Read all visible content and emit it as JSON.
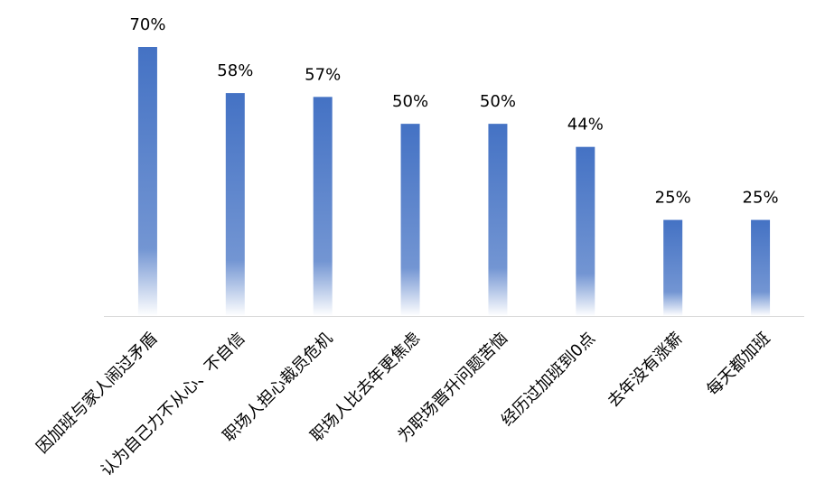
{
  "chart_data": {
    "type": "bar",
    "categories": [
      "因加班与家人闹过矛盾",
      "认为自己力不从心、不自信",
      "职场人担心裁员危机",
      "职场人比去年更焦虑",
      "为职场晋升问题苦恼",
      "经历过加班到0点",
      "去年没有涨薪",
      "每天都加班"
    ],
    "values": [
      70,
      58,
      57,
      50,
      50,
      44,
      25,
      25
    ],
    "value_labels": [
      "70%",
      "58%",
      "57%",
      "50%",
      "50%",
      "44%",
      "25%",
      "25%"
    ],
    "color": "#4472c4",
    "ylim": [
      0,
      70
    ]
  }
}
